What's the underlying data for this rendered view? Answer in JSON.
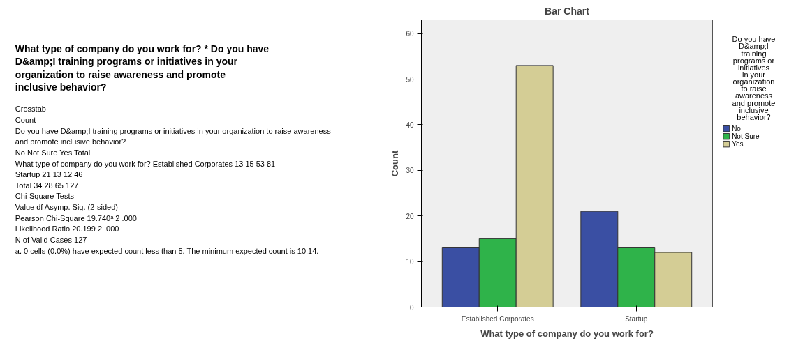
{
  "chart_data": [
    {
      "type": "other",
      "title": "What type of company do you work for? * Do you have D&amp;I training programs or initiatives in your organization to raise awareness and promote inclusive behavior?",
      "annotations": [
        "Crosstab",
        "Count",
        "Do you have D&amp;I training programs or initiatives in your organization to raise awareness and promote inclusive behavior?",
        "No    Not Sure    Yes    Total",
        "What type of company do you work for?    Established Corporates    13    15    53    81",
        "Startup    21    13    12    46",
        "Total    34    28    65    127",
        "Chi-Square Tests",
        "Value    df    Asymp. Sig. (2-sided)",
        "Pearson Chi-Square    19.740ᵃ    2    .000",
        "Likelihood Ratio    20.199    2    .000",
        "N of Valid Cases    127",
        "a. 0 cells (0.0%) have expected count less than 5. The minimum expected count is 10.14."
      ]
    },
    {
      "type": "bar",
      "title": "Bar Chart",
      "xlabel": "What type of company do you work for?",
      "ylabel": "Count",
      "legend_title": "Do you have D&amp;I training programs or initiatives in your organization to raise awareness and promote inclusive behavior?",
      "categories": [
        "Established Corporates",
        "Startup"
      ],
      "series": [
        {
          "name": "No",
          "color": "#3a4fa3",
          "values": [
            13,
            21
          ]
        },
        {
          "name": "Not Sure",
          "color": "#2fb34a",
          "values": [
            15,
            13
          ]
        },
        {
          "name": "Yes",
          "color": "#d4cd95",
          "values": [
            53,
            12
          ]
        }
      ],
      "ylim": [
        0,
        63
      ],
      "yticks": [
        0,
        10,
        20,
        30,
        40,
        50,
        60
      ],
      "grid": false,
      "legend": "right"
    }
  ]
}
